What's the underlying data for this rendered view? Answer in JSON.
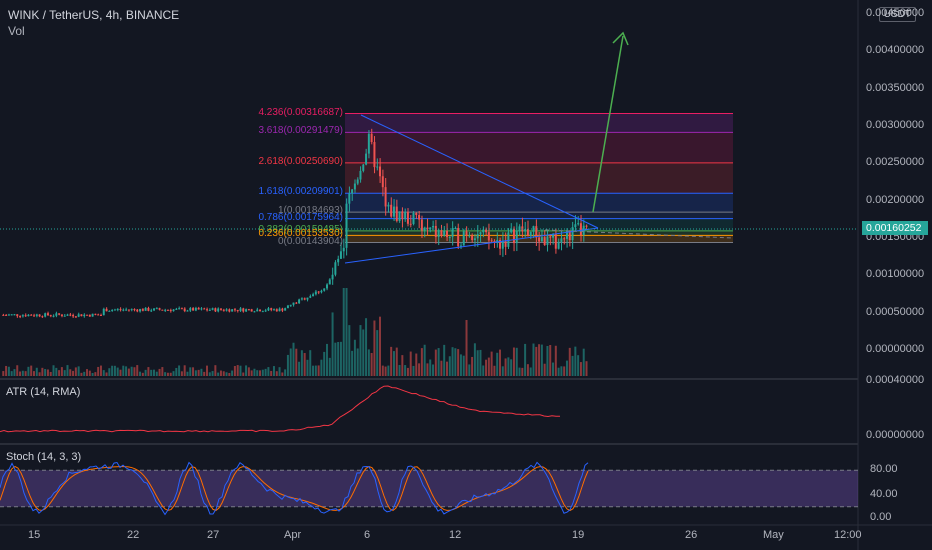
{
  "header": {
    "symbol": "WINK / TetherUS, 4h, BINANCE",
    "volume_label": "Vol",
    "currency_badge": "USDT"
  },
  "price_axis": {
    "ticks": [
      "0.00450000",
      "0.00400000",
      "0.00350000",
      "0.00300000",
      "0.00250000",
      "0.00200000",
      "0.00150000",
      "0.00100000",
      "0.00050000",
      "0.00000000"
    ],
    "current_price": "0.00160252"
  },
  "fib_levels": [
    {
      "label": "4.236(0.00316687)",
      "value": 0.00316687,
      "color": "#e91e63"
    },
    {
      "label": "3.618(0.00291479)",
      "value": 0.00291479,
      "color": "#9c27b0"
    },
    {
      "label": "2.618(0.00250690)",
      "value": 0.0025069,
      "color": "#f23645"
    },
    {
      "label": "1.618(0.00209901)",
      "value": 0.00209901,
      "color": "#2962ff"
    },
    {
      "label": "1(0.00184693)",
      "value": 0.00184693,
      "color": "#787b86"
    },
    {
      "label": "0.786(0.00175964)",
      "value": 0.00175964,
      "color": "#2962ff"
    },
    {
      "label": "0.382(0.00159485)",
      "value": 0.00159485,
      "color": "#4caf50"
    },
    {
      "label": "0.236(0.00153530)",
      "value": 0.0015353,
      "color": "#ff9800"
    },
    {
      "label": "0(0.00143904)",
      "value": 0.00143904,
      "color": "#787b86"
    }
  ],
  "atr": {
    "title": "ATR (14, RMA)",
    "ticks": [
      "0.00040000",
      "0.00000000"
    ],
    "color": "#f23645"
  },
  "stoch": {
    "title": "Stoch (14, 3, 3)",
    "ticks": [
      "80.00",
      "40.00",
      "0.00"
    ],
    "k_color": "#2962ff",
    "d_color": "#ff6d00"
  },
  "time_axis": [
    "15",
    "22",
    "27",
    "Apr",
    "6",
    "12",
    "19",
    "26",
    "May",
    "12:00"
  ],
  "colors": {
    "up": "#26a69a",
    "down": "#ef5350",
    "arrow": "#4caf50",
    "trend": "#2962ff"
  }
}
